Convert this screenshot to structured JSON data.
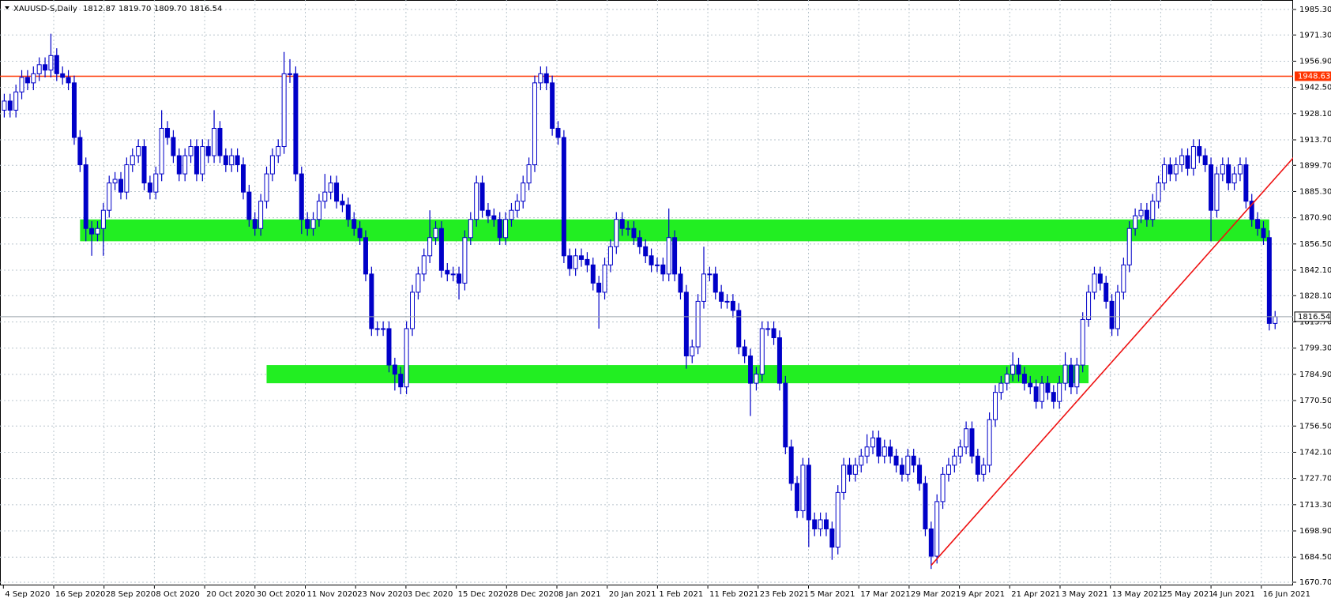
{
  "chart_data": {
    "type": "candlestick",
    "header": {
      "symbol": "XAUUSD-S,Daily",
      "ohlc_labels": [
        "1812.87",
        "1819.70",
        "1809.70",
        "1816.54"
      ]
    },
    "x_labels": [
      "4 Sep 2020",
      "16 Sep 2020",
      "28 Sep 2020",
      "8 Oct 2020",
      "20 Oct 2020",
      "30 Oct 2020",
      "11 Nov 2020",
      "23 Nov 2020",
      "3 Dec 2020",
      "15 Dec 2020",
      "28 Dec 2020",
      "8 Jan 2021",
      "20 Jan 2021",
      "1 Feb 2021",
      "11 Feb 2021",
      "23 Feb 2021",
      "5 Mar 2021",
      "17 Mar 2021",
      "29 Mar 2021",
      "9 Apr 2021",
      "21 Apr 2021",
      "3 May 2021",
      "13 May 2021",
      "25 May 2021",
      "4 Jun 2021",
      "16 Jun 2021"
    ],
    "ylim": [
      1670.7,
      1985.3
    ],
    "yticks": [
      {
        "value": 1985.3,
        "label": "1985.30"
      },
      {
        "value": 1971.3,
        "label": "1971.30"
      },
      {
        "value": 1956.9,
        "label": "1956.90"
      },
      {
        "value": 1942.5,
        "label": "1942.50"
      },
      {
        "value": 1928.1,
        "label": "1928.10"
      },
      {
        "value": 1913.7,
        "label": "1913.70"
      },
      {
        "value": 1899.7,
        "label": "1899.70"
      },
      {
        "value": 1885.3,
        "label": "1885.30"
      },
      {
        "value": 1870.9,
        "label": "1870.90"
      },
      {
        "value": 1856.5,
        "label": "1856.50"
      },
      {
        "value": 1842.1,
        "label": "1842.10"
      },
      {
        "value": 1828.1,
        "label": "1828.10"
      },
      {
        "value": 1813.7,
        "label": "1813.70"
      },
      {
        "value": 1799.3,
        "label": "1799.30"
      },
      {
        "value": 1784.9,
        "label": "1784.90"
      },
      {
        "value": 1770.5,
        "label": "1770.50"
      },
      {
        "value": 1756.5,
        "label": "1756.50"
      },
      {
        "value": 1742.1,
        "label": "1742.10"
      },
      {
        "value": 1727.7,
        "label": "1727.70"
      },
      {
        "value": 1713.3,
        "label": "1713.30"
      },
      {
        "value": 1698.9,
        "label": "1698.90"
      },
      {
        "value": 1684.5,
        "label": "1684.50"
      },
      {
        "value": 1670.7,
        "label": "1670.70"
      }
    ],
    "grid": true,
    "color": "#0000c8",
    "open": [
      1930,
      1935,
      1930,
      1940,
      1948,
      1945,
      1950,
      1955,
      1952,
      1960,
      1950,
      1948,
      1945,
      1915,
      1900,
      1865,
      1862,
      1865,
      1875,
      1890,
      1892,
      1885,
      1900,
      1905,
      1910,
      1890,
      1885,
      1895,
      1920,
      1915,
      1905,
      1895,
      1905,
      1910,
      1895,
      1910,
      1905,
      1920,
      1905,
      1900,
      1905,
      1900,
      1885,
      1870,
      1865,
      1880,
      1895,
      1905,
      1910,
      1950,
      1950,
      1895,
      1870,
      1865,
      1870,
      1880,
      1885,
      1890,
      1880,
      1878,
      1870,
      1865,
      1860,
      1840,
      1810,
      1810,
      1810,
      1790,
      1785,
      1778,
      1810,
      1830,
      1840,
      1850,
      1860,
      1865,
      1842,
      1840,
      1840,
      1835,
      1860,
      1870,
      1890,
      1875,
      1872,
      1870,
      1860,
      1870,
      1875,
      1880,
      1890,
      1900,
      1945,
      1950,
      1945,
      1920,
      1915,
      1850,
      1843,
      1850,
      1848,
      1845,
      1835,
      1830,
      1845,
      1855,
      1870,
      1865,
      1865,
      1860,
      1855,
      1850,
      1845,
      1845,
      1840,
      1860,
      1840,
      1830,
      1795,
      1800,
      1825,
      1840,
      1840,
      1830,
      1825,
      1825,
      1820,
      1800,
      1795,
      1780,
      1785,
      1810,
      1810,
      1805,
      1780,
      1745,
      1725,
      1710,
      1735,
      1705,
      1700,
      1705,
      1700,
      1690,
      1720,
      1735,
      1730,
      1735,
      1740,
      1745,
      1750,
      1740,
      1745,
      1740,
      1735,
      1730,
      1740,
      1735,
      1725,
      1700,
      1685,
      1715,
      1730,
      1735,
      1740,
      1745,
      1755,
      1740,
      1730,
      1735,
      1760,
      1775,
      1780,
      1785,
      1790,
      1785,
      1780,
      1778,
      1770,
      1780,
      1775,
      1770,
      1780,
      1790,
      1778,
      1790,
      1815,
      1830,
      1840,
      1835,
      1825,
      1810,
      1830,
      1845,
      1865,
      1872,
      1875,
      1870,
      1880,
      1890,
      1900,
      1895,
      1900,
      1905,
      1898,
      1910,
      1905,
      1900,
      1875,
      1895,
      1900,
      1890,
      1895,
      1900,
      1880,
      1870,
      1865,
      1860,
      1812.87
    ],
    "high": [
      1939,
      1939,
      1944,
      1952,
      1952,
      1954,
      1959,
      1959,
      1972,
      1964,
      1954,
      1952,
      1949,
      1919,
      1904,
      1869,
      1869,
      1879,
      1894,
      1896,
      1896,
      1904,
      1909,
      1914,
      1914,
      1894,
      1899,
      1930,
      1924,
      1919,
      1909,
      1909,
      1914,
      1914,
      1914,
      1914,
      1930,
      1924,
      1909,
      1909,
      1909,
      1904,
      1889,
      1874,
      1884,
      1899,
      1909,
      1914,
      1962,
      1958,
      1954,
      1899,
      1874,
      1874,
      1884,
      1895,
      1894,
      1894,
      1884,
      1882,
      1874,
      1869,
      1864,
      1844,
      1814,
      1814,
      1814,
      1794,
      1789,
      1814,
      1834,
      1844,
      1854,
      1875,
      1869,
      1869,
      1846,
      1844,
      1844,
      1864,
      1874,
      1894,
      1894,
      1879,
      1876,
      1874,
      1874,
      1879,
      1884,
      1894,
      1904,
      1949,
      1954,
      1954,
      1949,
      1924,
      1919,
      1854,
      1854,
      1854,
      1852,
      1849,
      1839,
      1849,
      1859,
      1874,
      1874,
      1869,
      1869,
      1864,
      1859,
      1854,
      1849,
      1849,
      1876,
      1864,
      1844,
      1834,
      1804,
      1829,
      1855,
      1844,
      1844,
      1834,
      1829,
      1829,
      1824,
      1804,
      1799,
      1789,
      1814,
      1814,
      1814,
      1809,
      1784,
      1749,
      1729,
      1739,
      1739,
      1709,
      1709,
      1709,
      1704,
      1724,
      1739,
      1739,
      1739,
      1744,
      1752,
      1754,
      1754,
      1749,
      1749,
      1744,
      1739,
      1744,
      1744,
      1739,
      1729,
      1704,
      1719,
      1734,
      1739,
      1744,
      1749,
      1759,
      1759,
      1744,
      1739,
      1764,
      1779,
      1784,
      1789,
      1797,
      1794,
      1789,
      1784,
      1782,
      1784,
      1784,
      1779,
      1784,
      1797,
      1794,
      1794,
      1819,
      1834,
      1844,
      1844,
      1839,
      1829,
      1834,
      1849,
      1869,
      1876,
      1879,
      1879,
      1884,
      1894,
      1904,
      1904,
      1904,
      1909,
      1909,
      1914,
      1914,
      1909,
      1904,
      1899,
      1904,
      1904,
      1899,
      1904,
      1904,
      1884,
      1874,
      1869,
      1864,
      1819.7
    ],
    "low": [
      1926,
      1926,
      1926,
      1936,
      1941,
      1941,
      1946,
      1948,
      1948,
      1946,
      1944,
      1941,
      1911,
      1896,
      1858,
      1850,
      1858,
      1850,
      1871,
      1886,
      1881,
      1881,
      1896,
      1901,
      1886,
      1881,
      1881,
      1891,
      1911,
      1901,
      1891,
      1891,
      1901,
      1891,
      1891,
      1901,
      1901,
      1901,
      1896,
      1896,
      1896,
      1881,
      1866,
      1861,
      1861,
      1876,
      1891,
      1901,
      1906,
      1945,
      1891,
      1862,
      1861,
      1861,
      1866,
      1876,
      1881,
      1876,
      1874,
      1866,
      1861,
      1856,
      1836,
      1806,
      1806,
      1806,
      1786,
      1776,
      1774,
      1774,
      1806,
      1826,
      1836,
      1846,
      1856,
      1838,
      1836,
      1836,
      1826,
      1831,
      1856,
      1866,
      1871,
      1868,
      1866,
      1856,
      1856,
      1866,
      1871,
      1876,
      1886,
      1896,
      1941,
      1941,
      1916,
      1911,
      1846,
      1839,
      1839,
      1844,
      1841,
      1831,
      1810,
      1826,
      1841,
      1851,
      1861,
      1861,
      1856,
      1851,
      1846,
      1841,
      1841,
      1836,
      1836,
      1836,
      1826,
      1788,
      1791,
      1796,
      1821,
      1836,
      1826,
      1821,
      1821,
      1816,
      1796,
      1791,
      1762,
      1776,
      1781,
      1806,
      1801,
      1776,
      1741,
      1721,
      1706,
      1706,
      1690,
      1696,
      1696,
      1696,
      1683,
      1686,
      1716,
      1726,
      1726,
      1731,
      1736,
      1741,
      1736,
      1736,
      1736,
      1731,
      1726,
      1726,
      1731,
      1721,
      1696,
      1678,
      1681,
      1711,
      1726,
      1731,
      1736,
      1741,
      1736,
      1726,
      1726,
      1731,
      1756,
      1771,
      1776,
      1781,
      1781,
      1776,
      1774,
      1766,
      1766,
      1771,
      1766,
      1766,
      1776,
      1774,
      1774,
      1786,
      1811,
      1826,
      1831,
      1821,
      1806,
      1806,
      1826,
      1841,
      1861,
      1868,
      1866,
      1866,
      1876,
      1886,
      1891,
      1891,
      1896,
      1894,
      1894,
      1901,
      1896,
      1858,
      1871,
      1891,
      1886,
      1886,
      1891,
      1876,
      1866,
      1861,
      1856,
      1809,
      1809.7
    ],
    "close": [
      1935,
      1930,
      1940,
      1948,
      1945,
      1950,
      1955,
      1952,
      1960,
      1950,
      1948,
      1945,
      1915,
      1900,
      1865,
      1862,
      1865,
      1875,
      1890,
      1892,
      1885,
      1900,
      1905,
      1910,
      1890,
      1885,
      1895,
      1920,
      1915,
      1905,
      1895,
      1905,
      1910,
      1895,
      1910,
      1905,
      1920,
      1905,
      1900,
      1905,
      1900,
      1885,
      1870,
      1865,
      1880,
      1895,
      1905,
      1910,
      1950,
      1950,
      1895,
      1870,
      1865,
      1870,
      1880,
      1885,
      1890,
      1880,
      1878,
      1870,
      1865,
      1860,
      1840,
      1810,
      1810,
      1810,
      1790,
      1785,
      1778,
      1810,
      1830,
      1840,
      1850,
      1860,
      1865,
      1842,
      1840,
      1840,
      1835,
      1860,
      1870,
      1890,
      1875,
      1872,
      1870,
      1860,
      1870,
      1875,
      1880,
      1890,
      1900,
      1945,
      1950,
      1945,
      1920,
      1915,
      1850,
      1843,
      1850,
      1848,
      1845,
      1835,
      1830,
      1845,
      1855,
      1870,
      1865,
      1865,
      1860,
      1855,
      1850,
      1845,
      1845,
      1840,
      1860,
      1840,
      1830,
      1795,
      1800,
      1825,
      1840,
      1840,
      1830,
      1825,
      1825,
      1820,
      1800,
      1795,
      1780,
      1785,
      1810,
      1810,
      1805,
      1780,
      1745,
      1725,
      1710,
      1735,
      1705,
      1700,
      1705,
      1700,
      1690,
      1720,
      1735,
      1730,
      1735,
      1740,
      1745,
      1750,
      1740,
      1745,
      1740,
      1735,
      1730,
      1740,
      1735,
      1725,
      1700,
      1685,
      1715,
      1730,
      1735,
      1740,
      1745,
      1755,
      1740,
      1730,
      1735,
      1760,
      1775,
      1780,
      1785,
      1790,
      1785,
      1780,
      1778,
      1770,
      1780,
      1775,
      1770,
      1780,
      1790,
      1778,
      1790,
      1815,
      1830,
      1840,
      1835,
      1825,
      1810,
      1830,
      1845,
      1865,
      1872,
      1875,
      1870,
      1880,
      1890,
      1900,
      1895,
      1900,
      1905,
      1898,
      1910,
      1905,
      1900,
      1875,
      1895,
      1900,
      1890,
      1895,
      1900,
      1880,
      1870,
      1865,
      1860,
      1812.87,
      1816.54
    ],
    "levels": [
      {
        "value": 1948.63,
        "color": "#ff3300"
      }
    ],
    "zones": [
      {
        "low": 1858,
        "high": 1870,
        "from": 13,
        "to": 217,
        "color": "#22ee22"
      },
      {
        "low": 1780,
        "high": 1790,
        "from": 45,
        "to": 186,
        "color": "#22ee22"
      }
    ],
    "trendline": {
      "x": [
        159,
        222
      ],
      "y": [
        1680,
        1907
      ],
      "color": "#ee1111"
    }
  }
}
